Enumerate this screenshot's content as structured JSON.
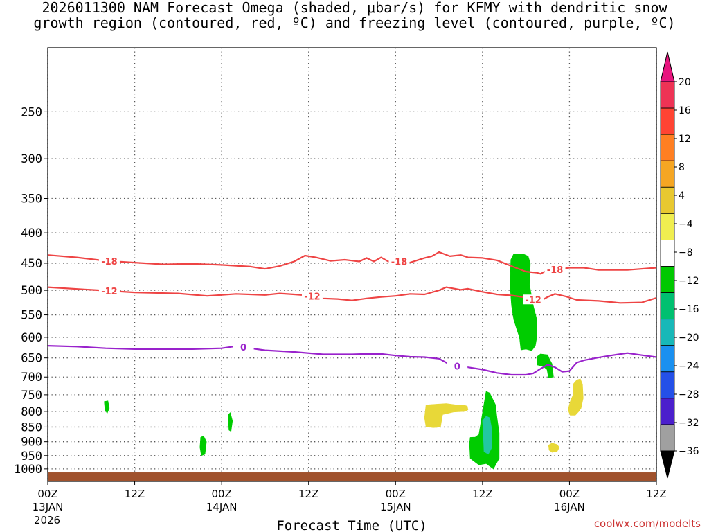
{
  "title": {
    "line1": "2026011300 NAM Forecast Omega (shaded, μbar/s) for KFMY with dendritic snow",
    "line2": "growth region (contoured, red, ºC) and freezing level (contoured, purple, ºC)"
  },
  "chart_data": {
    "type": "contour",
    "xlabel": "Forecast Time (UTC)",
    "ylabel": "",
    "x_axis": {
      "range_hours": [
        0,
        84
      ],
      "ticks": [
        {
          "h": 0,
          "label": "00Z",
          "sub": "13JAN",
          "sub2": "2026"
        },
        {
          "h": 12,
          "label": "12Z",
          "sub": "",
          "sub2": ""
        },
        {
          "h": 24,
          "label": "00Z",
          "sub": "14JAN",
          "sub2": ""
        },
        {
          "h": 36,
          "label": "12Z",
          "sub": "",
          "sub2": ""
        },
        {
          "h": 48,
          "label": "00Z",
          "sub": "15JAN",
          "sub2": ""
        },
        {
          "h": 60,
          "label": "12Z",
          "sub": "",
          "sub2": ""
        },
        {
          "h": 72,
          "label": "00Z",
          "sub": "16JAN",
          "sub2": ""
        },
        {
          "h": 84,
          "label": "12Z",
          "sub": "",
          "sub2": ""
        }
      ]
    },
    "y_axis": {
      "scale": "log_pressure",
      "range_hPa": [
        1050,
        195
      ],
      "ticks": [
        250,
        300,
        350,
        400,
        450,
        500,
        550,
        600,
        650,
        700,
        750,
        800,
        850,
        900,
        950,
        1000
      ]
    },
    "grid": true,
    "colorbar": {
      "labels": [
        "20",
        "16",
        "12",
        "8",
        "4",
        "−4",
        "−8",
        "−12",
        "−16",
        "−20",
        "−24",
        "−28",
        "−32",
        "−36"
      ],
      "colors": [
        "#ee3355",
        "#ff4433",
        "#ff7f22",
        "#f5a623",
        "#e8c830",
        "#f0ee50",
        "#ffffff",
        "#00c800",
        "#00c070",
        "#18b8b8",
        "#1a90f0",
        "#2450e8",
        "#4b1fcc",
        "#8a2be2",
        "#a0a0a0"
      ],
      "top_arrow_color": "#e8157f",
      "bottom_arrow_color": "#000000"
    },
    "contours": [
      {
        "name": "-18",
        "color": "#ee4444",
        "label_at": [
          [
            8.5,
            "-18"
          ],
          [
            48.5,
            "-18"
          ],
          [
            70,
            "-18"
          ]
        ],
        "points": [
          [
            0,
            436
          ],
          [
            4,
            440
          ],
          [
            8,
            446
          ],
          [
            12,
            449
          ],
          [
            16,
            452
          ],
          [
            20,
            451
          ],
          [
            24,
            453
          ],
          [
            28,
            456
          ],
          [
            30,
            460
          ],
          [
            32,
            455
          ],
          [
            34,
            447
          ],
          [
            35.5,
            437
          ],
          [
            37,
            440
          ],
          [
            39,
            446
          ],
          [
            41,
            444
          ],
          [
            43,
            447
          ],
          [
            44,
            441
          ],
          [
            45,
            447
          ],
          [
            46,
            440
          ],
          [
            47,
            447
          ],
          [
            48,
            446
          ],
          [
            50,
            449
          ],
          [
            52,
            441
          ],
          [
            53,
            438
          ],
          [
            54,
            431
          ],
          [
            55.5,
            438
          ],
          [
            57,
            436
          ],
          [
            58,
            440
          ],
          [
            60,
            441
          ],
          [
            62,
            445
          ],
          [
            64,
            455
          ],
          [
            66,
            465
          ],
          [
            67.5,
            467
          ],
          [
            68,
            469
          ],
          [
            69,
            462
          ],
          [
            71,
            460
          ],
          [
            72,
            458
          ],
          [
            74,
            458
          ],
          [
            76,
            462
          ],
          [
            80,
            462
          ],
          [
            84,
            458
          ]
        ]
      },
      {
        "name": "-12",
        "color": "#ee4444",
        "label_at": [
          [
            8.5,
            "-12"
          ],
          [
            36.5,
            "-12"
          ],
          [
            67,
            "-12"
          ]
        ],
        "points": [
          [
            0,
            494
          ],
          [
            6,
            499
          ],
          [
            12,
            504
          ],
          [
            18,
            506
          ],
          [
            22,
            511
          ],
          [
            26,
            507
          ],
          [
            30,
            509
          ],
          [
            32,
            506
          ],
          [
            34,
            508
          ],
          [
            36,
            510
          ],
          [
            38,
            516
          ],
          [
            40,
            517
          ],
          [
            42,
            520
          ],
          [
            44,
            516
          ],
          [
            46,
            513
          ],
          [
            48,
            511
          ],
          [
            50,
            507
          ],
          [
            52,
            508
          ],
          [
            54,
            500
          ],
          [
            55,
            494
          ],
          [
            57,
            499
          ],
          [
            58,
            497
          ],
          [
            60,
            503
          ],
          [
            62,
            508
          ],
          [
            64,
            510
          ],
          [
            66,
            514
          ],
          [
            67,
            518
          ],
          [
            68,
            521
          ],
          [
            69,
            513
          ],
          [
            70,
            507
          ],
          [
            71.5,
            512
          ],
          [
            73,
            519
          ],
          [
            76,
            521
          ],
          [
            79,
            525
          ],
          [
            82,
            524
          ],
          [
            84,
            515
          ]
        ]
      },
      {
        "name": "0",
        "color": "#9922cc",
        "label_at": [
          [
            27,
            "0"
          ],
          [
            56.5,
            "0"
          ]
        ],
        "points": [
          [
            0,
            620
          ],
          [
            4,
            622
          ],
          [
            8,
            626
          ],
          [
            12,
            628
          ],
          [
            16,
            628
          ],
          [
            20,
            628
          ],
          [
            24,
            626
          ],
          [
            26,
            621
          ],
          [
            28,
            626
          ],
          [
            30,
            631
          ],
          [
            34,
            635
          ],
          [
            38,
            641
          ],
          [
            42,
            641
          ],
          [
            44,
            640
          ],
          [
            46,
            640
          ],
          [
            48,
            644
          ],
          [
            50,
            647
          ],
          [
            52,
            648
          ],
          [
            54,
            652
          ],
          [
            55,
            662
          ],
          [
            56,
            672
          ],
          [
            57,
            670
          ],
          [
            58,
            674
          ],
          [
            60,
            680
          ],
          [
            62,
            689
          ],
          [
            64,
            694
          ],
          [
            66,
            694
          ],
          [
            67,
            690
          ],
          [
            68,
            678
          ],
          [
            69,
            667
          ],
          [
            70,
            674
          ],
          [
            71,
            686
          ],
          [
            72,
            684
          ],
          [
            73,
            662
          ],
          [
            74,
            656
          ],
          [
            76,
            649
          ],
          [
            78,
            643
          ],
          [
            80,
            638
          ],
          [
            82,
            643
          ],
          [
            84,
            648
          ]
        ]
      }
    ],
    "shaded_regions": [
      {
        "level": "-4 to -8",
        "color": "#00cc00",
        "points": [
          [
            7.8,
            770
          ],
          [
            8.3,
            768
          ],
          [
            8.5,
            790
          ],
          [
            8.2,
            806
          ],
          [
            7.9,
            795
          ]
        ]
      },
      {
        "level": "-4 to -8",
        "color": "#00cc00",
        "points": [
          [
            21.1,
            885
          ],
          [
            21.5,
            880
          ],
          [
            21.9,
            900
          ],
          [
            21.7,
            945
          ],
          [
            21.2,
            950
          ],
          [
            21.0,
            920
          ]
        ]
      },
      {
        "level": "-4 to -8",
        "color": "#00cc00",
        "points": [
          [
            24.9,
            810
          ],
          [
            25.2,
            804
          ],
          [
            25.5,
            830
          ],
          [
            25.3,
            865
          ],
          [
            25.0,
            860
          ]
        ]
      },
      {
        "level": "4 to 8",
        "color": "#e8d838",
        "points": [
          [
            52.2,
            780
          ],
          [
            53.5,
            778
          ],
          [
            55,
            776
          ],
          [
            56.7,
            781
          ],
          [
            57.5,
            781
          ],
          [
            57.9,
            784
          ],
          [
            58.0,
            795
          ],
          [
            57.6,
            800
          ],
          [
            56,
            802
          ],
          [
            54.5,
            810
          ],
          [
            54.2,
            850
          ],
          [
            53.2,
            852
          ],
          [
            52.2,
            849
          ],
          [
            52.0,
            820
          ]
        ]
      },
      {
        "level": "-4 to -8",
        "color": "#00cc00",
        "points": [
          [
            58.3,
            885
          ],
          [
            59,
            884
          ],
          [
            59.5,
            875
          ],
          [
            60.5,
            740
          ],
          [
            61,
            745
          ],
          [
            61.8,
            780
          ],
          [
            62.0,
            820
          ],
          [
            62.3,
            870
          ],
          [
            62.3,
            960
          ],
          [
            61.5,
            1000
          ],
          [
            60.5,
            980
          ],
          [
            59.5,
            985
          ],
          [
            58.3,
            960
          ],
          [
            58.2,
            905
          ]
        ]
      },
      {
        "level": "-8 to -12",
        "color": "#22c8a0",
        "points": [
          [
            60,
            830
          ],
          [
            60.5,
            815
          ],
          [
            61,
            820
          ],
          [
            61.3,
            860
          ],
          [
            61.3,
            920
          ],
          [
            60.8,
            945
          ],
          [
            60.2,
            935
          ],
          [
            60.1,
            870
          ]
        ]
      },
      {
        "level": "-4 to -8",
        "color": "#00cc00",
        "points": [
          [
            63.9,
            444
          ],
          [
            64.3,
            434
          ],
          [
            65.6,
            434
          ],
          [
            66.3,
            438
          ],
          [
            66.6,
            450
          ],
          [
            66.5,
            490
          ],
          [
            67,
            530
          ],
          [
            67.5,
            560
          ],
          [
            67.5,
            600
          ],
          [
            67.3,
            620
          ],
          [
            66.8,
            632
          ],
          [
            66,
            628
          ],
          [
            65.3,
            630
          ],
          [
            65.1,
            600
          ],
          [
            64.7,
            580
          ],
          [
            64.3,
            560
          ],
          [
            64,
            530
          ],
          [
            63.8,
            490
          ]
        ]
      },
      {
        "level": "-4 to -8",
        "color": "#00cc00",
        "points": [
          [
            67.5,
            647
          ],
          [
            68,
            640
          ],
          [
            69,
            642
          ],
          [
            69.3,
            655
          ],
          [
            69.6,
            665
          ],
          [
            69.8,
            700
          ],
          [
            69.1,
            702
          ],
          [
            68.9,
            680
          ],
          [
            68.4,
            672
          ],
          [
            67.5,
            668
          ]
        ]
      },
      {
        "level": "4 to 8",
        "color": "#e8d838",
        "points": [
          [
            72.5,
            720
          ],
          [
            73,
            708
          ],
          [
            73.5,
            705
          ],
          [
            73.8,
            720
          ],
          [
            73.9,
            760
          ],
          [
            73.6,
            790
          ],
          [
            73.3,
            800
          ],
          [
            72.8,
            812
          ],
          [
            72.1,
            812
          ],
          [
            71.8,
            795
          ],
          [
            72.1,
            770
          ],
          [
            72.5,
            750
          ]
        ]
      },
      {
        "level": "4 to 8",
        "color": "#e8d838",
        "points": [
          [
            69.1,
            912
          ],
          [
            69.6,
            905
          ],
          [
            70.3,
            910
          ],
          [
            70.6,
            920
          ],
          [
            70.3,
            935
          ],
          [
            69.6,
            938
          ],
          [
            69.2,
            930
          ]
        ]
      }
    ],
    "terrain": {
      "color": "#a0522d",
      "top_hPa": 1014
    }
  },
  "watermark": "coolwx.com/modelts"
}
